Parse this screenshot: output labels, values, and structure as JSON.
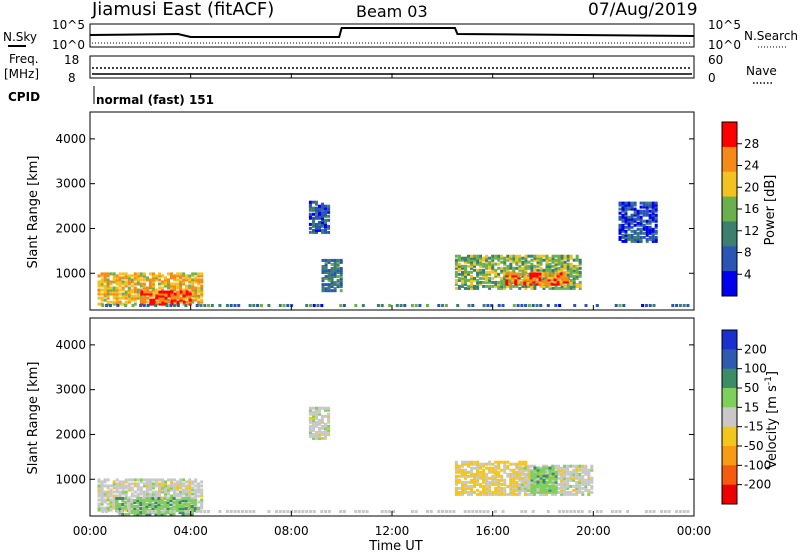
{
  "header": {
    "station": "Jiamusi East (fitACF)",
    "beam": "Beam 03",
    "date": "07/Aug/2019"
  },
  "left_labels": {
    "nsky": "N.Sky",
    "freq": "Freq.",
    "freq_unit": "[MHz]",
    "cpid": "CPID"
  },
  "right_labels": {
    "nsearch": "N.Search",
    "nave": "Nave"
  },
  "cpid_text": "normal (fast) 151",
  "axis_labels": {
    "slant_range": "Slant Range [km]",
    "time": "Time UT",
    "power_cbar": "Power [dB]",
    "velocity_cbar": "Velocity [m s",
    "velocity_exp": "-1",
    "velocity_close": "]"
  },
  "noise_ticks": {
    "top": "10^5",
    "bottom": "10^0"
  },
  "freq_ticks": [
    "18",
    "8"
  ],
  "nave_ticks": [
    "60",
    "0"
  ],
  "time_ticks": [
    "00:00",
    "04:00",
    "08:00",
    "12:00",
    "16:00",
    "20:00",
    "00:00"
  ],
  "range_ticks": [
    "4000",
    "3000",
    "2000",
    "1000"
  ],
  "power_colorbar": {
    "ticks": [
      "28",
      "24",
      "20",
      "16",
      "12",
      "8",
      "4"
    ],
    "colors": [
      "#0000ee",
      "#2a55b5",
      "#3b7f6f",
      "#6ab04c",
      "#f4c21f",
      "#f58a16",
      "#ff0000"
    ]
  },
  "velocity_colorbar": {
    "ticks": [
      "200",
      "100",
      "50",
      "15",
      "-15",
      "-50",
      "-100",
      "-200"
    ],
    "colors": [
      "#ee0000",
      "#f55a0e",
      "#f79a14",
      "#f3c61b",
      "#c8c8c8",
      "#7fd05a",
      "#3c8c68",
      "#2c5bb0",
      "#1c2fd0"
    ]
  },
  "chart_data": {
    "type": "heatmap",
    "x_label": "Time UT",
    "x_range_hours": [
      0,
      24
    ],
    "y_label": "Slant Range [km]",
    "y_range_km": [
      180,
      4600
    ],
    "noise_sky_level": [
      {
        "t": 0.0,
        "v": 0.55
      },
      {
        "t": 3.5,
        "v": 0.6
      },
      {
        "t": 4.0,
        "v": 0.45
      },
      {
        "t": 9.9,
        "v": 0.45
      },
      {
        "t": 10.0,
        "v": 0.9
      },
      {
        "t": 14.5,
        "v": 0.9
      },
      {
        "t": 14.6,
        "v": 0.6
      },
      {
        "t": 24.0,
        "v": 0.5
      }
    ],
    "panels": [
      {
        "parameter": "Power",
        "units": "dB",
        "scale": [
          0,
          32
        ],
        "echo_regions": [
          {
            "t0": 0.3,
            "t1": 4.5,
            "r0": 300,
            "r1": 1000,
            "power": 22
          },
          {
            "t0": 2.0,
            "t1": 4.0,
            "r0": 300,
            "r1": 600,
            "power": 28
          },
          {
            "t0": 8.7,
            "t1": 9.5,
            "r0": 1900,
            "r1": 2600,
            "power": 8
          },
          {
            "t0": 9.2,
            "t1": 10.0,
            "r0": 600,
            "r1": 1300,
            "power": 10
          },
          {
            "t0": 14.5,
            "t1": 19.5,
            "r0": 650,
            "r1": 1400,
            "power": 16
          },
          {
            "t0": 16.5,
            "t1": 19.0,
            "r0": 750,
            "r1": 1000,
            "power": 26
          },
          {
            "t0": 21.0,
            "t1": 22.5,
            "r0": 1700,
            "r1": 2600,
            "power": 6
          }
        ]
      },
      {
        "parameter": "Velocity",
        "units": "m s^-1",
        "scale": [
          -200,
          200
        ],
        "echo_regions": [
          {
            "t0": 0.3,
            "t1": 4.5,
            "r0": 300,
            "r1": 1000,
            "velocity": 0
          },
          {
            "t0": 1.0,
            "t1": 4.2,
            "r0": 200,
            "r1": 600,
            "velocity": -50
          },
          {
            "t0": 8.7,
            "t1": 9.5,
            "r0": 1900,
            "r1": 2600,
            "velocity": 0
          },
          {
            "t0": 14.5,
            "t1": 17.5,
            "r0": 650,
            "r1": 1400,
            "velocity": 30
          },
          {
            "t0": 17.0,
            "t1": 20.0,
            "r0": 650,
            "r1": 1300,
            "velocity": 0
          },
          {
            "t0": 17.5,
            "t1": 18.5,
            "r0": 700,
            "r1": 1250,
            "velocity": -50
          }
        ]
      }
    ]
  }
}
